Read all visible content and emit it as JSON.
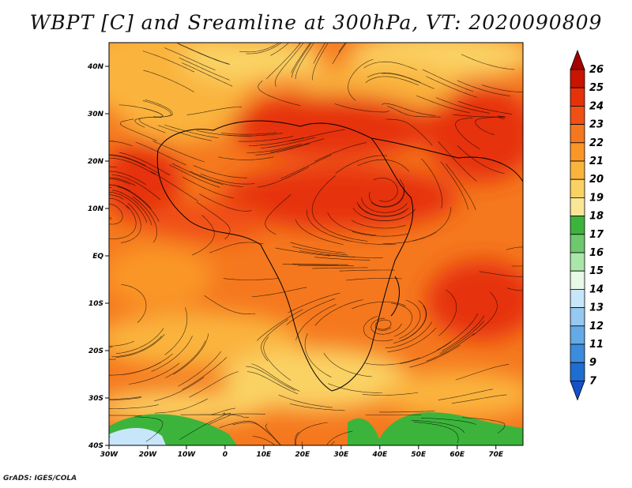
{
  "title": "WBPT [C] and Sreamline at 300hPa, VT: 2020090809",
  "credit": "GrADS: IGES/COLA",
  "map": {
    "lat_labels": [
      "40N",
      "30N",
      "20N",
      "10N",
      "EQ",
      "10S",
      "20S",
      "30S",
      "40S"
    ],
    "lon_labels": [
      "30W",
      "20W",
      "10W",
      "0",
      "10E",
      "20E",
      "30E",
      "40E",
      "50E",
      "60E",
      "70E"
    ],
    "lat_range": [
      -40,
      45
    ],
    "lon_range": [
      -30,
      77
    ]
  },
  "colorbar": {
    "levels": [
      "26",
      "25",
      "24",
      "23",
      "22",
      "21",
      "20",
      "19",
      "18",
      "17",
      "16",
      "15",
      "14",
      "13",
      "12",
      "11",
      "9",
      "7"
    ],
    "colors": [
      "#a50000",
      "#c81400",
      "#e6320a",
      "#f05014",
      "#f5781e",
      "#fa9628",
      "#fab43c",
      "#fad264",
      "#fae696",
      "#3cb43c",
      "#6ec86e",
      "#aae6aa",
      "#e6fae6",
      "#c8e6fa",
      "#96c8f0",
      "#64aae6",
      "#3c8cdc",
      "#1e6ed2",
      "#1450c8"
    ]
  }
}
